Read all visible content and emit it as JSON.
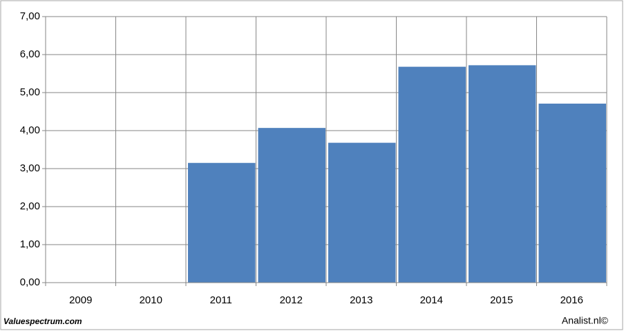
{
  "chart_data": {
    "type": "bar",
    "categories": [
      "2009",
      "2010",
      "2011",
      "2012",
      "2013",
      "2014",
      "2015",
      "2016"
    ],
    "values": [
      null,
      null,
      3.15,
      4.07,
      3.68,
      5.68,
      5.72,
      4.71
    ],
    "color": "#4f81bd",
    "ylim": [
      0,
      7
    ],
    "yticks": [
      {
        "value": 0,
        "label": "0,00"
      },
      {
        "value": 1,
        "label": "1,00"
      },
      {
        "value": 2,
        "label": "2,00"
      },
      {
        "value": 3,
        "label": "3,00"
      },
      {
        "value": 4,
        "label": "4,00"
      },
      {
        "value": 5,
        "label": "5,00"
      },
      {
        "value": 6,
        "label": "6,00"
      },
      {
        "value": 7,
        "label": "7,00"
      }
    ],
    "grid": true,
    "source": "Valuespectrum.com",
    "credit": "Analist.nl©"
  }
}
